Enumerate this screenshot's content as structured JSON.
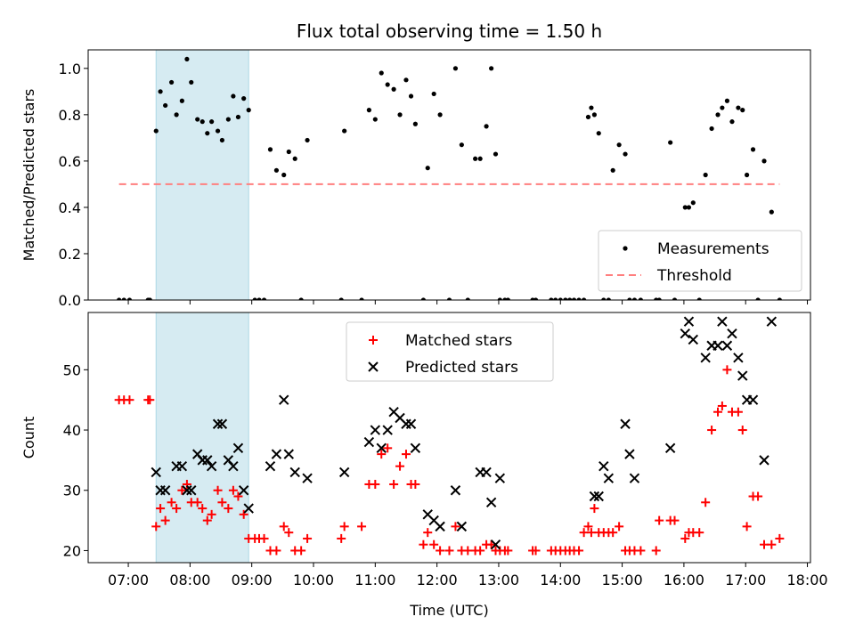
{
  "chart_data": [
    {
      "type": "scatter",
      "title": "Flux total observing time = 1.50 h",
      "xlabel": "",
      "ylabel": "Matched/Predicted stars",
      "ylim": [
        0,
        1.08
      ],
      "yticks": [
        0.0,
        0.2,
        0.4,
        0.6,
        0.8,
        1.0
      ],
      "ytick_labels": [
        "0.0",
        "0.2",
        "0.4",
        "0.6",
        "0.8",
        "1.0"
      ],
      "xlim_hours": [
        6.35,
        18.05
      ],
      "xticks_hours": [
        7,
        8,
        9,
        10,
        11,
        12,
        13,
        14,
        15,
        16,
        17,
        18
      ],
      "xtick_labels": [],
      "shaded_span_hours": [
        7.45,
        8.95
      ],
      "shade_color": "#add8e6",
      "legend_position": "lower-right",
      "series": [
        {
          "name": "Measurements",
          "marker": "dot",
          "color": "#000000",
          "x_hours": [
            6.85,
            6.93,
            7.02,
            7.32,
            7.35,
            7.45,
            7.52,
            7.6,
            7.7,
            7.78,
            7.87,
            7.95,
            8.02,
            8.12,
            8.2,
            8.28,
            8.35,
            8.45,
            8.52,
            8.62,
            8.7,
            8.78,
            8.87,
            8.95,
            9.05,
            9.12,
            9.2,
            9.3,
            9.4,
            9.52,
            9.6,
            9.7,
            9.8,
            9.9,
            10.45,
            10.5,
            10.78,
            10.9,
            11.0,
            11.1,
            11.2,
            11.3,
            11.4,
            11.5,
            11.58,
            11.65,
            11.78,
            11.85,
            11.95,
            12.05,
            12.2,
            12.3,
            12.4,
            12.5,
            12.62,
            12.7,
            12.8,
            12.88,
            12.95,
            13.02,
            13.1,
            13.15,
            13.55,
            13.6,
            13.85,
            13.92,
            14.0,
            14.08,
            14.15,
            14.22,
            14.3,
            14.38,
            14.45,
            14.5,
            14.55,
            14.62,
            14.7,
            14.78,
            14.85,
            14.95,
            15.05,
            15.12,
            15.2,
            15.3,
            15.55,
            15.6,
            15.78,
            15.85,
            16.02,
            16.08,
            16.15,
            16.25,
            16.35,
            16.45,
            16.55,
            16.62,
            16.7,
            16.78,
            16.88,
            16.95,
            17.02,
            17.12,
            17.2,
            17.3,
            17.42,
            17.55
          ],
          "y": [
            0,
            0,
            0,
            0,
            0,
            0.73,
            0.9,
            0.84,
            0.94,
            0.8,
            0.86,
            1.04,
            0.94,
            0.78,
            0.77,
            0.72,
            0.77,
            0.73,
            0.69,
            0.78,
            0.88,
            0.79,
            0.87,
            0.82,
            0,
            0,
            0,
            0.65,
            0.56,
            0.54,
            0.64,
            0.61,
            0,
            0.69,
            0,
            0.73,
            0,
            0.82,
            0.78,
            0.98,
            0.93,
            0.91,
            0.8,
            0.95,
            0.88,
            0.76,
            0,
            0.57,
            0.89,
            0.8,
            0,
            1.0,
            0.67,
            0,
            0.61,
            0.61,
            0.75,
            1.0,
            0.63,
            0,
            0,
            0,
            0,
            0,
            0,
            0,
            0,
            0,
            0,
            0,
            0,
            0,
            0.79,
            0.83,
            0.8,
            0.72,
            0,
            0,
            0.56,
            0.67,
            0.63,
            0,
            0,
            0,
            0,
            0,
            0.68,
            0,
            0.4,
            0.4,
            0.42,
            0,
            0.54,
            0.74,
            0.8,
            0.83,
            0.86,
            0.77,
            0.83,
            0.82,
            0.54,
            0.65,
            0,
            0.6,
            0.38,
            0
          ]
        },
        {
          "name": "Threshold",
          "marker": "dashed-line",
          "color": "#ff7f7f",
          "x_hours": [
            6.85,
            17.55
          ],
          "y": [
            0.5,
            0.5
          ]
        }
      ]
    },
    {
      "type": "scatter",
      "title": "",
      "xlabel": "Time (UTC)",
      "ylabel": "Count",
      "ylim": [
        18,
        59.5
      ],
      "yticks": [
        20,
        30,
        40,
        50
      ],
      "ytick_labels": [
        "20",
        "30",
        "40",
        "50"
      ],
      "xlim_hours": [
        6.35,
        18.05
      ],
      "xticks_hours": [
        7,
        8,
        9,
        10,
        11,
        12,
        13,
        14,
        15,
        16,
        17,
        18
      ],
      "xtick_labels": [
        "07:00",
        "08:00",
        "09:00",
        "10:00",
        "11:00",
        "12:00",
        "13:00",
        "14:00",
        "15:00",
        "16:00",
        "17:00",
        "18:00"
      ],
      "shaded_span_hours": [
        7.45,
        8.95
      ],
      "shade_color": "#add8e6",
      "legend_position": "upper-center",
      "series": [
        {
          "name": "Matched stars",
          "marker": "plus",
          "color": "#ff0000",
          "x_hours": [
            6.85,
            6.93,
            7.02,
            7.32,
            7.35,
            7.45,
            7.52,
            7.6,
            7.7,
            7.78,
            7.87,
            7.95,
            8.02,
            8.12,
            8.2,
            8.28,
            8.35,
            8.45,
            8.52,
            8.62,
            8.7,
            8.78,
            8.87,
            8.95,
            9.05,
            9.12,
            9.2,
            9.3,
            9.4,
            9.52,
            9.6,
            9.7,
            9.8,
            9.9,
            10.45,
            10.5,
            10.78,
            10.9,
            11.0,
            11.1,
            11.2,
            11.3,
            11.4,
            11.5,
            11.58,
            11.65,
            11.78,
            11.85,
            11.95,
            12.05,
            12.2,
            12.3,
            12.4,
            12.5,
            12.62,
            12.7,
            12.8,
            12.88,
            12.95,
            13.02,
            13.1,
            13.15,
            13.55,
            13.6,
            13.85,
            13.92,
            14.0,
            14.08,
            14.15,
            14.22,
            14.3,
            14.38,
            14.45,
            14.5,
            14.55,
            14.62,
            14.7,
            14.78,
            14.85,
            14.95,
            15.05,
            15.12,
            15.2,
            15.3,
            15.55,
            15.6,
            15.78,
            15.85,
            16.02,
            16.08,
            16.15,
            16.25,
            16.35,
            16.45,
            16.55,
            16.62,
            16.7,
            16.78,
            16.88,
            16.95,
            17.02,
            17.12,
            17.2,
            17.3,
            17.42,
            17.55
          ],
          "y": [
            45,
            45,
            45,
            45,
            45,
            24,
            27,
            25,
            28,
            27,
            30,
            31,
            28,
            28,
            27,
            25,
            26,
            30,
            28,
            27,
            30,
            29,
            26,
            22,
            22,
            22,
            22,
            20,
            20,
            24,
            23,
            20,
            20,
            22,
            22,
            24,
            24,
            31,
            31,
            36,
            37,
            31,
            34,
            36,
            31,
            31,
            21,
            23,
            21,
            20,
            20,
            24,
            20,
            20,
            20,
            20,
            21,
            21,
            20,
            20,
            20,
            20,
            20,
            20,
            20,
            20,
            20,
            20,
            20,
            20,
            20,
            23,
            24,
            23,
            27,
            23,
            23,
            23,
            23,
            24,
            20,
            20,
            20,
            20,
            20,
            25,
            25,
            25,
            22,
            23,
            23,
            23,
            28,
            40,
            43,
            44,
            50,
            43,
            43,
            40,
            24,
            29,
            29,
            21,
            21,
            22
          ]
        },
        {
          "name": "Predicted stars",
          "marker": "x",
          "color": "#000000",
          "x_hours": [
            7.45,
            7.52,
            7.6,
            7.78,
            7.87,
            7.95,
            8.02,
            8.12,
            8.2,
            8.28,
            8.35,
            8.45,
            8.52,
            8.62,
            8.7,
            8.78,
            8.87,
            8.95,
            9.3,
            9.4,
            9.52,
            9.6,
            9.7,
            9.9,
            10.5,
            10.9,
            11.0,
            11.1,
            11.2,
            11.3,
            11.4,
            11.5,
            11.58,
            11.65,
            11.85,
            11.95,
            12.05,
            12.3,
            12.4,
            12.7,
            12.8,
            12.88,
            12.95,
            13.02,
            14.55,
            14.62,
            14.7,
            14.78,
            15.05,
            15.12,
            15.2,
            15.78,
            16.02,
            16.08,
            16.15,
            16.35,
            16.45,
            16.55,
            16.62,
            16.7,
            16.78,
            16.88,
            16.95,
            17.02,
            17.12,
            17.3,
            17.42
          ],
          "y": [
            33,
            30,
            30,
            34,
            34,
            30,
            30,
            36,
            35,
            35,
            34,
            41,
            41,
            35,
            34,
            37,
            30,
            27,
            34,
            36,
            45,
            36,
            33,
            32,
            33,
            38,
            40,
            37,
            40,
            43,
            42,
            41,
            41,
            37,
            26,
            25,
            24,
            30,
            24,
            33,
            33,
            28,
            21,
            32,
            29,
            29,
            34,
            32,
            41,
            36,
            32,
            37,
            56,
            58,
            55,
            52,
            54,
            54,
            58,
            54,
            56,
            52,
            49,
            45,
            45,
            35,
            58
          ]
        }
      ]
    }
  ]
}
